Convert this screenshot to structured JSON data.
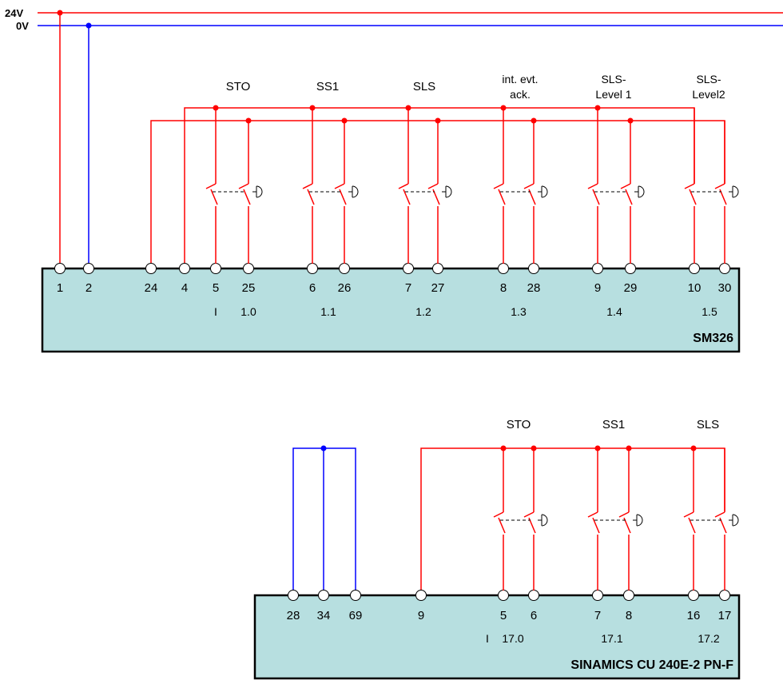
{
  "colors": {
    "positive": "#ff0000",
    "negative": "#0000ff",
    "module_fill": "#b7dfe0",
    "module_border": "#000000"
  },
  "rails": {
    "positive_label": "24V",
    "negative_label": "0V"
  },
  "sm326": {
    "name": "SM326",
    "terminals": [
      "1",
      "2",
      "24",
      "4",
      "5",
      "25",
      "6",
      "26",
      "7",
      "27",
      "8",
      "28",
      "9",
      "29",
      "10",
      "30"
    ],
    "addresses": [
      "I",
      "1.0",
      "1.1",
      "1.2",
      "1.3",
      "1.4",
      "1.5"
    ],
    "channels": [
      {
        "line1": "STO",
        "line2": ""
      },
      {
        "line1": "SS1",
        "line2": ""
      },
      {
        "line1": "SLS",
        "line2": ""
      },
      {
        "line1": "int. evt.",
        "line2": "ack."
      },
      {
        "line1": "SLS-",
        "line2": "Level 1"
      },
      {
        "line1": "SLS-",
        "line2": "Level2"
      }
    ]
  },
  "sinamics": {
    "name": "SINAMICS CU 240E-2 PN-F",
    "terminals": [
      "28",
      "34",
      "69",
      "9",
      "5",
      "6",
      "7",
      "8",
      "16",
      "17"
    ],
    "addresses": [
      "I",
      "17.0",
      "17.1",
      "17.2"
    ],
    "channels": [
      {
        "line1": "STO"
      },
      {
        "line1": "SS1"
      },
      {
        "line1": "SLS"
      }
    ]
  }
}
